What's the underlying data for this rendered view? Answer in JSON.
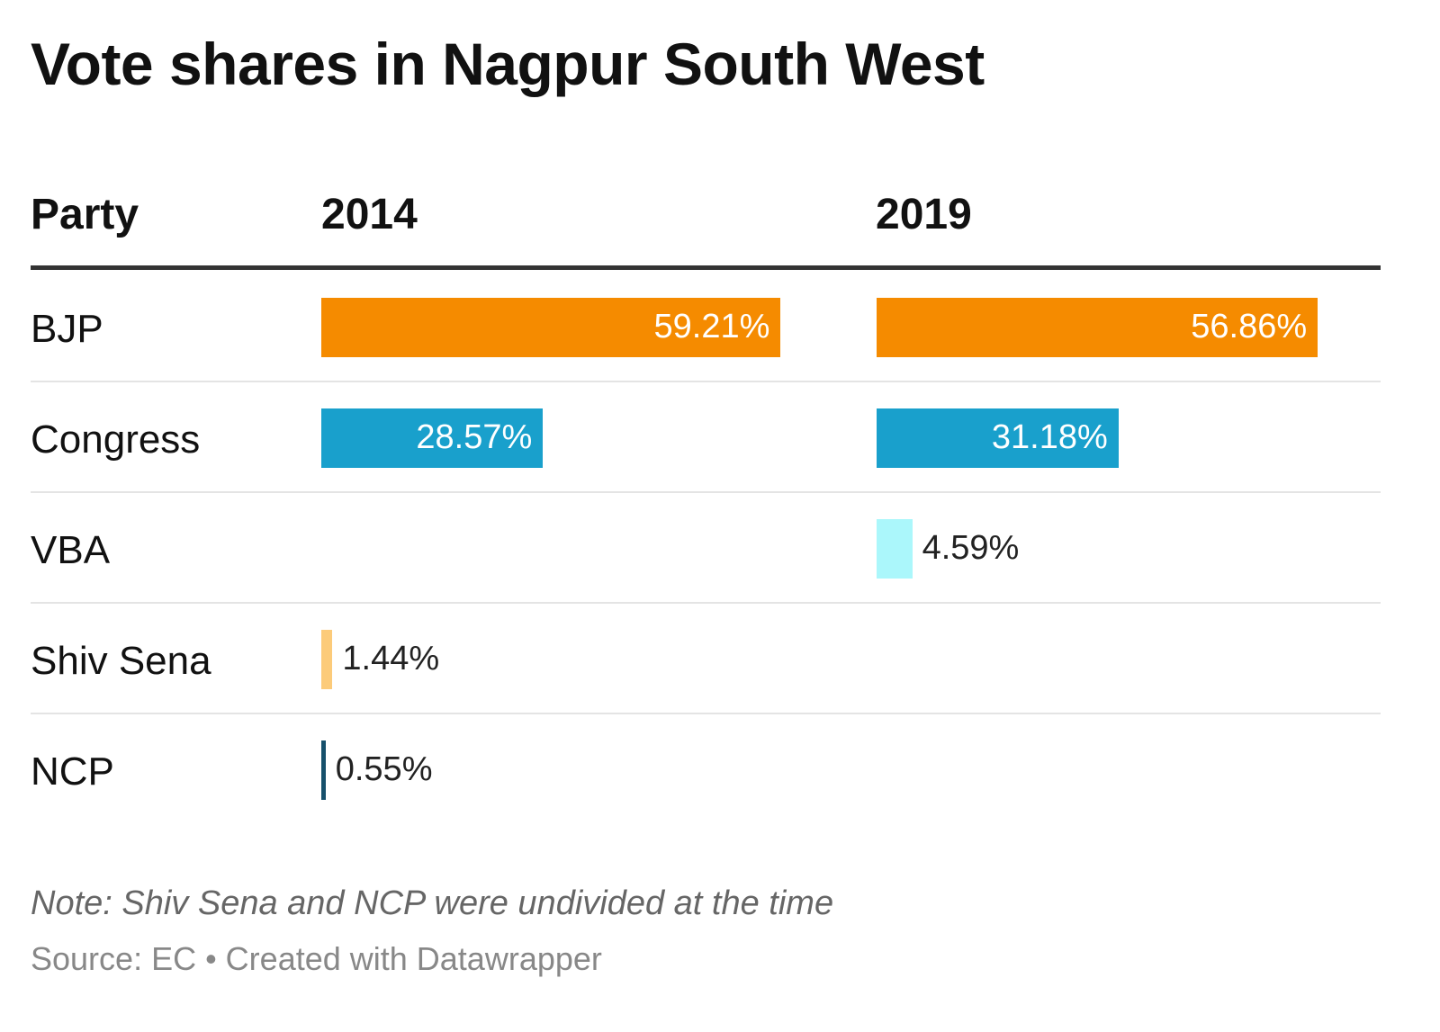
{
  "title": "Vote shares in Nagpur South West",
  "note": "Note: Shiv Sena and NCP were undivided at the time",
  "source": "Source: EC • Created with Datawrapper",
  "chart_data": {
    "type": "table",
    "columns": [
      "Party",
      "2014",
      "2019"
    ],
    "rows": [
      {
        "party": "BJP",
        "color": "#f58b00",
        "v2014": 59.21,
        "v2019": 56.86,
        "label2014": "59.21%",
        "label2019": "56.86%"
      },
      {
        "party": "Congress",
        "color": "#19a0cc",
        "v2014": 28.57,
        "v2019": 31.18,
        "label2014": "28.57%",
        "label2019": "31.18%"
      },
      {
        "party": "VBA",
        "color": "#abf7fb",
        "v2014": null,
        "v2019": 4.59,
        "label2014": "",
        "label2019": "4.59%"
      },
      {
        "party": "Shiv Sena",
        "color": "#fccb7a",
        "v2014": 1.44,
        "v2019": null,
        "label2014": "1.44%",
        "label2019": ""
      },
      {
        "party": "NCP",
        "color": "#16506b",
        "v2014": 0.55,
        "v2019": null,
        "label2014": "0.55%",
        "label2019": ""
      }
    ]
  }
}
